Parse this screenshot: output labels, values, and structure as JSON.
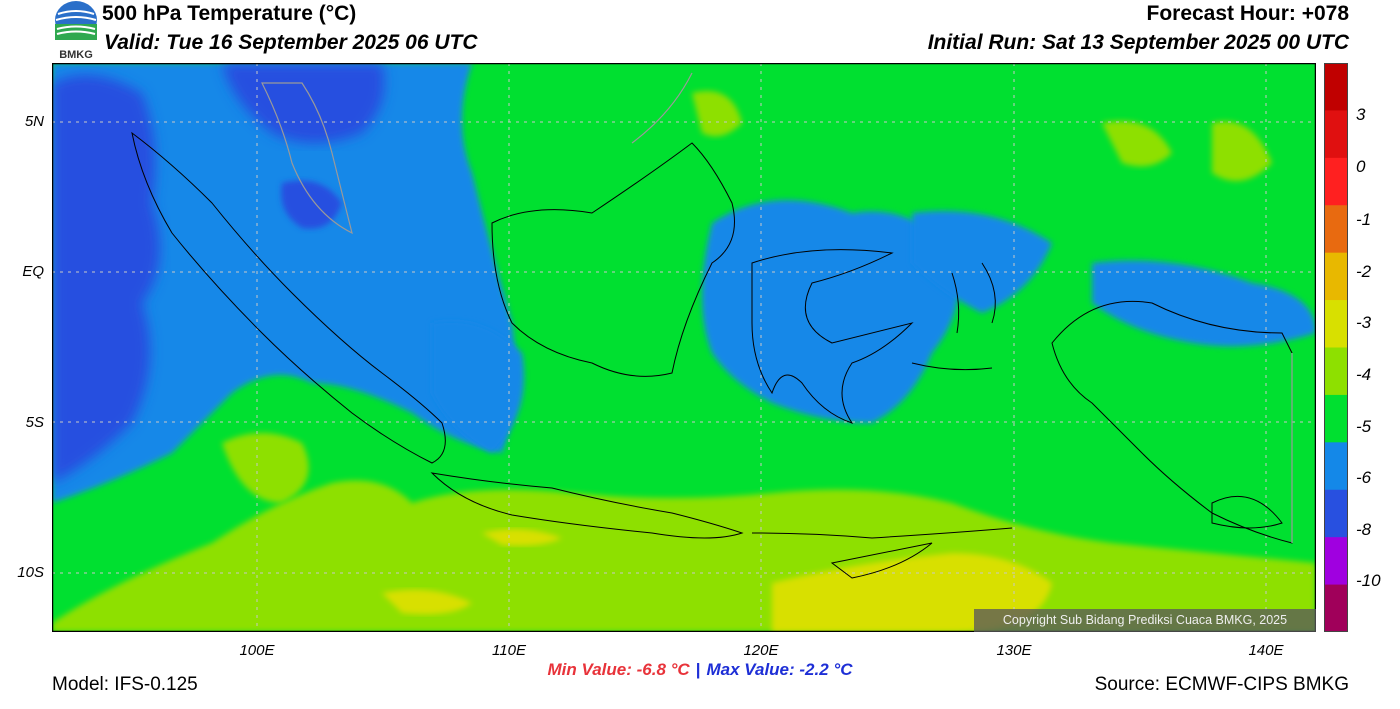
{
  "header": {
    "title": "500 hPa Temperature (°C)",
    "valid": "Valid: Tue 16 September 2025 06 UTC",
    "forecast_hour": "Forecast Hour: +078",
    "initial_run": "Initial Run: Sat 13 September 2025 00 UTC",
    "logo_text": "BMKG"
  },
  "map": {
    "lat_labels": [
      "5N",
      "EQ",
      "5S",
      "10S"
    ],
    "lon_labels": [
      "100E",
      "110E",
      "120E",
      "130E",
      "140E"
    ],
    "copyright": "Copyright Sub Bidang Prediksi Cuaca BMKG, 2025"
  },
  "colorbar": {
    "labels": [
      "3",
      "0",
      "-1",
      "-2",
      "-3",
      "-4",
      "-5",
      "-6",
      "-8",
      "-10"
    ],
    "colors": [
      "#c00000",
      "#e01010",
      "#ff2020",
      "#e86a10",
      "#e8b800",
      "#d8e000",
      "#8ee000",
      "#00e030",
      "#1488e8",
      "#2850e0",
      "#a000e0",
      "#a0005a"
    ]
  },
  "stats": {
    "min": "Min Value: -6.8 °C",
    "sep": "|",
    "max": "Max Value: -2.2 °C"
  },
  "footer": {
    "model": "Model: IFS-0.125",
    "source": "Source: ECMWF-CIPS BMKG"
  }
}
